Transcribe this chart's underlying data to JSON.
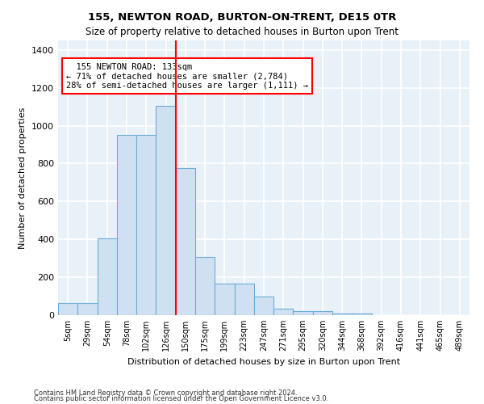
{
  "title": "155, NEWTON ROAD, BURTON-ON-TRENT, DE15 0TR",
  "subtitle": "Size of property relative to detached houses in Burton upon Trent",
  "xlabel": "Distribution of detached houses by size in Burton upon Trent",
  "ylabel": "Number of detached properties",
  "footnote1": "Contains HM Land Registry data © Crown copyright and database right 2024.",
  "footnote2": "Contains public sector information licensed under the Open Government Licence v3.0.",
  "bar_color": "#cfe0f2",
  "bar_edge_color": "#6baed6",
  "categories": [
    "5sqm",
    "29sqm",
    "54sqm",
    "78sqm",
    "102sqm",
    "126sqm",
    "150sqm",
    "175sqm",
    "199sqm",
    "223sqm",
    "247sqm",
    "271sqm",
    "295sqm",
    "320sqm",
    "344sqm",
    "368sqm",
    "392sqm",
    "416sqm",
    "441sqm",
    "465sqm",
    "489sqm"
  ],
  "values": [
    65,
    65,
    405,
    950,
    950,
    1105,
    775,
    305,
    165,
    165,
    100,
    35,
    20,
    20,
    10,
    10,
    0,
    0,
    0,
    0,
    0
  ],
  "ylim": [
    0,
    1450
  ],
  "yticks": [
    0,
    200,
    400,
    600,
    800,
    1000,
    1200,
    1400
  ],
  "vline_x_index": 6,
  "annotation_title": "155 NEWTON ROAD: 133sqm",
  "annotation_line1": "← 71% of detached houses are smaller (2,784)",
  "annotation_line2": "28% of semi-detached houses are larger (1,111) →",
  "bg_color": "#e8f0f8",
  "grid_color": "#ffffff",
  "fig_bg": "#ffffff",
  "title_fontsize": 9.5,
  "subtitle_fontsize": 8.5,
  "xlabel_fontsize": 8,
  "ylabel_fontsize": 8,
  "tick_fontsize": 7,
  "annot_fontsize": 7.5,
  "footnote_fontsize": 6
}
